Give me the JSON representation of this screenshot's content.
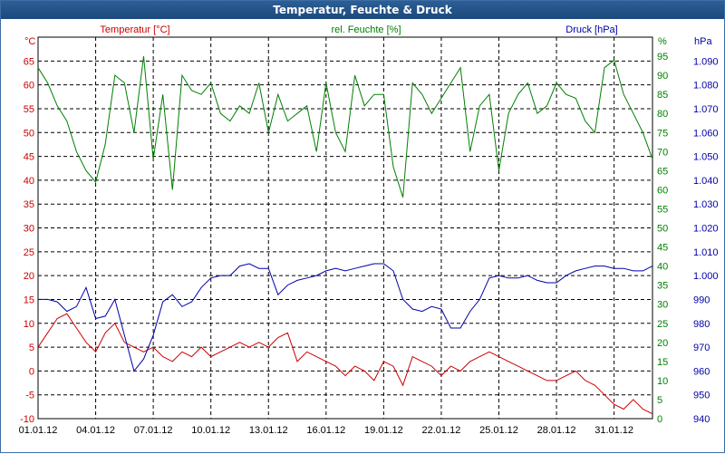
{
  "window": {
    "title": "Temperatur, Feuchte & Druck"
  },
  "chart_data": {
    "type": "line",
    "title": "Temperatur, Feuchte & Druck",
    "x_ticks": [
      "01.01.12",
      "04.01.12",
      "07.01.12",
      "10.01.12",
      "13.01.12",
      "16.01.12",
      "19.01.12",
      "22.01.12",
      "25.01.12",
      "28.01.12",
      "31.01.12"
    ],
    "xlim": [
      0,
      32
    ],
    "grid": true,
    "axes": {
      "temperature": {
        "label": "Temperatur [°C]",
        "unit": "°C",
        "ylim": [
          -10,
          70
        ],
        "ticks": [
          "-10",
          "-5",
          "0",
          "5",
          "10",
          "15",
          "20",
          "25",
          "30",
          "35",
          "40",
          "45",
          "50",
          "55",
          "60",
          "65"
        ],
        "color": "#cc0000"
      },
      "humidity": {
        "label": "rel. Feuchte [%]",
        "unit": "%",
        "ylim": [
          0,
          100
        ],
        "ticks": [
          "0",
          "5",
          "10",
          "15",
          "20",
          "25",
          "30",
          "35",
          "40",
          "45",
          "50",
          "55",
          "60",
          "65",
          "70",
          "75",
          "80",
          "85",
          "90",
          "95"
        ],
        "color": "#008000"
      },
      "pressure": {
        "label": "Druck [hPa]",
        "unit": "hPa",
        "ylim": [
          940,
          1100
        ],
        "ticks": [
          "940",
          "950",
          "960",
          "970",
          "980",
          "990",
          "1.000",
          "1.010",
          "1.020",
          "1.030",
          "1.040",
          "1.050",
          "1.060",
          "1.070",
          "1.080",
          "1.090"
        ],
        "color": "#0000aa"
      }
    },
    "series": [
      {
        "name": "Temperatur [°C]",
        "axis": "temperature",
        "color": "#cc0000",
        "x": [
          0,
          0.5,
          1,
          1.5,
          2,
          2.5,
          3,
          3.5,
          4,
          4.5,
          5,
          5.5,
          6,
          6.5,
          7,
          7.5,
          8,
          8.5,
          9,
          9.5,
          10,
          10.5,
          11,
          11.5,
          12,
          12.5,
          13,
          13.5,
          14,
          14.5,
          15,
          15.5,
          16,
          16.5,
          17,
          17.5,
          18,
          18.5,
          19,
          19.5,
          20,
          20.5,
          21,
          21.5,
          22,
          22.5,
          23,
          23.5,
          24,
          24.5,
          25,
          25.5,
          26,
          26.5,
          27,
          27.5,
          28,
          28.5,
          29,
          29.5,
          30,
          30.5,
          31,
          31.5,
          32
        ],
        "y": [
          5,
          8,
          11,
          12,
          9,
          6,
          4,
          8,
          10,
          6,
          5,
          4,
          5,
          3,
          2,
          4,
          3,
          5,
          3,
          4,
          5,
          6,
          5,
          6,
          5,
          7,
          8,
          2,
          4,
          3,
          2,
          1,
          -1,
          1,
          0,
          -2,
          2,
          1,
          -3,
          3,
          2,
          1,
          -1,
          1,
          0,
          2,
          3,
          4,
          3,
          2,
          1,
          0,
          -1,
          -2,
          -2,
          -1,
          0,
          -2,
          -3,
          -5,
          -7,
          -8,
          -6,
          -8,
          -9
        ]
      },
      {
        "name": "rel. Feuchte [%]",
        "axis": "humidity",
        "color": "#008000",
        "x": [
          0,
          0.5,
          1,
          1.5,
          2,
          2.5,
          3,
          3.5,
          4,
          4.5,
          5,
          5.5,
          6,
          6.5,
          7,
          7.5,
          8,
          8.5,
          9,
          9.5,
          10,
          10.5,
          11,
          11.5,
          12,
          12.5,
          13,
          13.5,
          14,
          14.5,
          15,
          15.5,
          16,
          16.5,
          17,
          17.5,
          18,
          18.5,
          19,
          19.5,
          20,
          20.5,
          21,
          21.5,
          22,
          22.5,
          23,
          23.5,
          24,
          24.5,
          25,
          25.5,
          26,
          26.5,
          27,
          27.5,
          28,
          28.5,
          29,
          29.5,
          30,
          30.5,
          31,
          31.5,
          32
        ],
        "y": [
          92,
          88,
          82,
          78,
          70,
          65,
          62,
          72,
          90,
          88,
          75,
          95,
          68,
          85,
          60,
          90,
          86,
          85,
          88,
          80,
          78,
          82,
          80,
          88,
          75,
          85,
          78,
          80,
          82,
          70,
          88,
          75,
          70,
          90,
          82,
          85,
          85,
          66,
          58,
          88,
          85,
          80,
          84,
          88,
          92,
          70,
          82,
          85,
          65,
          80,
          85,
          88,
          80,
          82,
          88,
          85,
          84,
          78,
          75,
          92,
          94,
          85,
          80,
          75,
          68
        ]
      },
      {
        "name": "Druck [hPa]",
        "axis": "pressure",
        "color": "#0000aa",
        "x": [
          0,
          0.5,
          1,
          1.5,
          2,
          2.5,
          3,
          3.5,
          4,
          4.5,
          5,
          5.5,
          6,
          6.5,
          7,
          7.5,
          8,
          8.5,
          9,
          9.5,
          10,
          10.5,
          11,
          11.5,
          12,
          12.5,
          13,
          13.5,
          14,
          14.5,
          15,
          15.5,
          16,
          16.5,
          17,
          17.5,
          18,
          18.5,
          19,
          19.5,
          20,
          20.5,
          21,
          21.5,
          22,
          22.5,
          23,
          23.5,
          24,
          24.5,
          25,
          25.5,
          26,
          26.5,
          27,
          27.5,
          28,
          28.5,
          29,
          29.5,
          30,
          30.5,
          31,
          31.5,
          32
        ],
        "y": [
          990,
          990,
          989,
          985,
          987,
          995,
          982,
          983,
          990,
          975,
          960,
          965,
          975,
          989,
          992,
          987,
          989,
          995,
          999,
          1000,
          1000,
          1004,
          1005,
          1003,
          1003,
          992,
          996,
          998,
          999,
          1000,
          1002,
          1003,
          1002,
          1003,
          1004,
          1005,
          1005,
          1002,
          990,
          986,
          985,
          987,
          986,
          978,
          978,
          985,
          990,
          999,
          1000,
          999,
          999,
          1000,
          998,
          997,
          997,
          1000,
          1002,
          1003,
          1004,
          1004,
          1003,
          1003,
          1002,
          1002,
          1004
        ]
      }
    ]
  }
}
